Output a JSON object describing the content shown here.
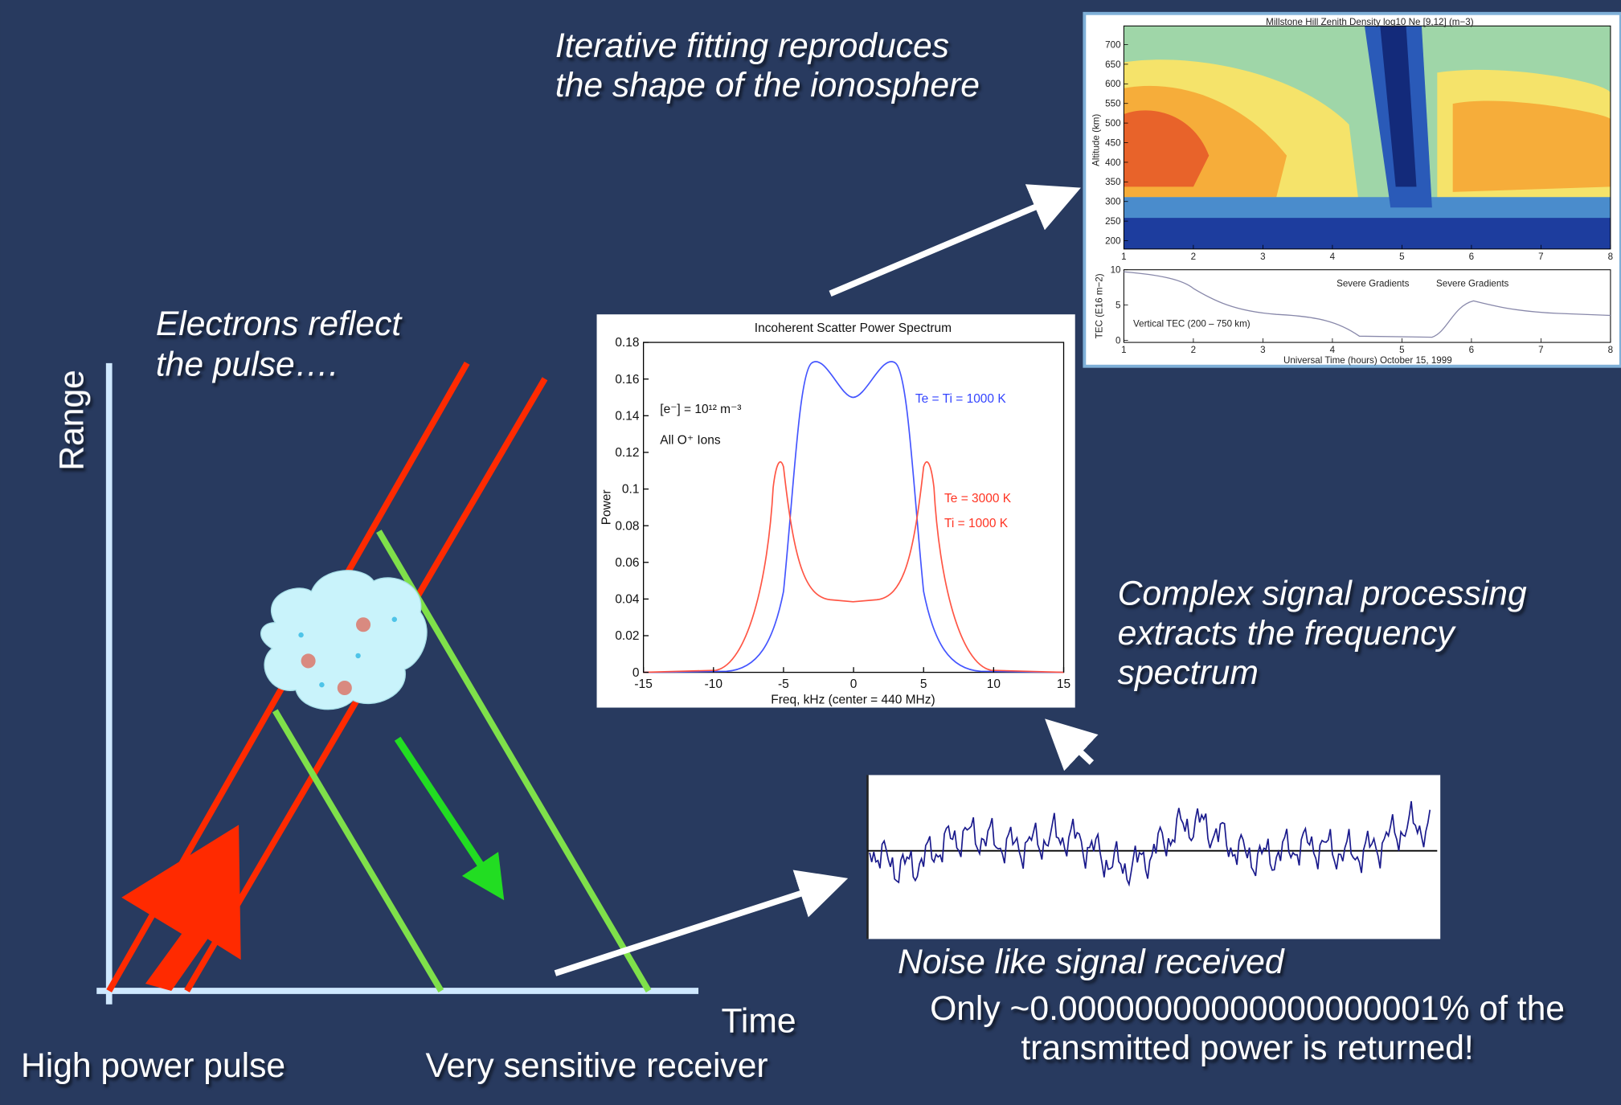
{
  "slide": {
    "fitting": [
      "Iterative fitting reproduces",
      "the shape of the ionosphere"
    ],
    "electrons": [
      "Electrons reflect",
      "the pulse…."
    ],
    "range_label": "Range",
    "time_label": "Time",
    "pulse_label": "High power pulse",
    "receiver_label": "Very sensitive receiver",
    "processing": [
      "Complex signal processing",
      "extracts the frequency",
      "spectrum"
    ],
    "noise_label": "Noise like signal received",
    "returned": [
      "Only ~0.00000000000000000001% of the",
      "transmitted power is returned!"
    ]
  },
  "spectrum": {
    "title": "Incoherent Scatter Power Spectrum",
    "y_label": "Power",
    "x_label": "Freq, kHz (center = 440 MHz)",
    "yticks": [
      0,
      0.02,
      0.04,
      0.06,
      0.08,
      0.1,
      0.12,
      0.14,
      0.16,
      0.18
    ],
    "xticks": [
      -15,
      -10,
      -5,
      0,
      5,
      10,
      15
    ],
    "density_note": "[e⁻] = 10¹² m⁻³",
    "ions_note": "All O⁺ Ions",
    "blue_note": "Te = Ti = 1000 K",
    "red_note": [
      "Te = 3000 K",
      "Ti = 1000 K"
    ]
  },
  "density_map": {
    "title": "Millstone Hill Zenith Density    log10 Ne [9,12] (m−3)",
    "y_label": "Altitude (km)",
    "yticks": [
      200,
      250,
      300,
      350,
      400,
      450,
      500,
      550,
      600,
      650,
      700
    ],
    "xticks": [
      1,
      2,
      3,
      4,
      5,
      6,
      7,
      8
    ],
    "lower": {
      "y_label": "TEC (E16 m−2)",
      "yticks": [
        0,
        5,
        10
      ],
      "xticks": [
        1,
        2,
        3,
        4,
        5,
        6,
        7,
        8
      ],
      "x_label": "Universal Time (hours)   October 15, 1999",
      "gradient_notes": [
        "Severe Gradients",
        "Severe Gradients"
      ],
      "tec_note": "Vertical TEC (200 – 750 km)"
    }
  }
}
